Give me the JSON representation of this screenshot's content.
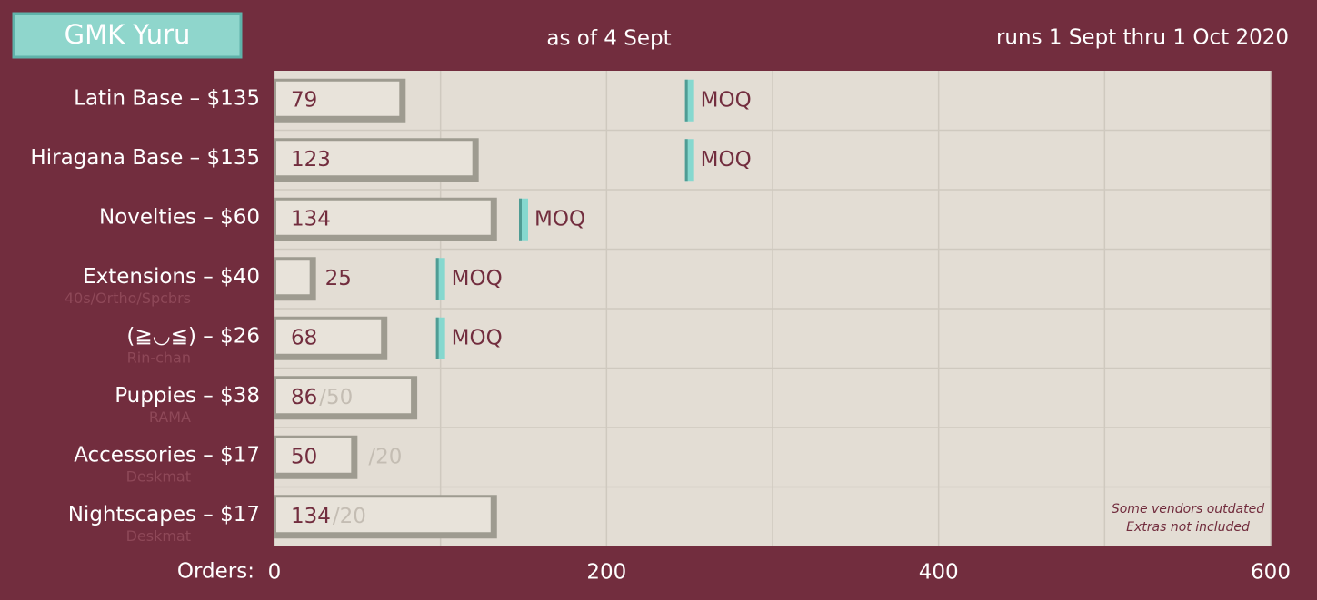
{
  "chart_data": {
    "type": "bar",
    "orientation": "horizontal",
    "title": "GMK Yuru",
    "subtitle": "as of 4 Sept",
    "run_dates": "runs 1 Sept thru 1 Oct 2020",
    "x_label": "Orders:",
    "categories": [
      "Latin Base – $135",
      "Hiragana Base – $135",
      "Novelties – $60",
      "Extensions – $40",
      "(≧◡≦) – $26",
      "Puppies – $38",
      "Accessories – $17",
      "Nightscapes – $17"
    ],
    "sublabels": [
      null,
      null,
      null,
      "40s/Ortho/Spcbrs",
      "Rin-chan",
      "RAMA",
      "Deskmat",
      "Deskmat"
    ],
    "values": [
      79,
      123,
      134,
      25,
      68,
      86,
      50,
      134
    ],
    "moq": [
      250,
      250,
      150,
      100,
      100,
      50,
      20,
      20
    ],
    "moq_labels": [
      "MOQ",
      "MOQ",
      "MOQ",
      "MOQ",
      "MOQ",
      "/50",
      "/20",
      "/20"
    ],
    "notes": [
      "Some vendors outdated",
      "Extras not included"
    ],
    "xlim": [
      0,
      600
    ],
    "xticks": [
      0,
      200,
      400,
      600
    ],
    "xminor": [
      100,
      300,
      500
    ],
    "grid": true,
    "bar_color": "#e8e3da",
    "bar_edge_color": "#9e9b90",
    "moq_color": "#86d8cf",
    "plot_background": "#e3ddd4"
  }
}
